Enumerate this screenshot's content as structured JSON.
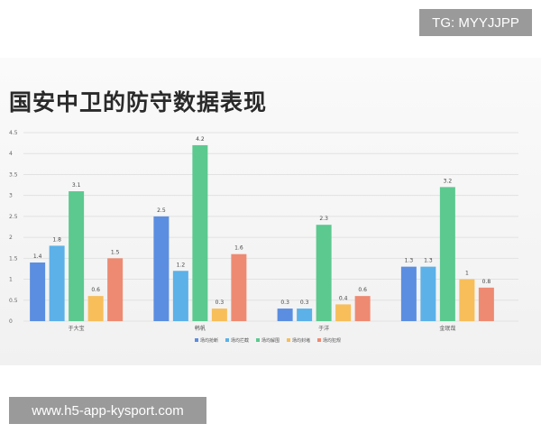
{
  "watermark_top": "TG: MYYJJPP",
  "watermark_bottom": "www.h5-app-kysport.com",
  "chart_data": {
    "type": "bar",
    "title": "国安中卫的防守数据表现",
    "xlabel": "",
    "ylabel": "",
    "ylim": [
      0,
      4.5
    ],
    "yticks": [
      "0",
      "0.5",
      "1",
      "1.5",
      "2",
      "2.5",
      "3",
      "3.5",
      "4",
      "4.5"
    ],
    "grid": true,
    "legend_position": "bottom",
    "categories": [
      "于大宝",
      "韩帆",
      "于洋",
      "金珉哉"
    ],
    "series": [
      {
        "name": "场均抢断",
        "color": "#5b8ee0",
        "values": [
          1.4,
          2.5,
          0.3,
          1.3
        ],
        "labels": [
          "1.4",
          "2.5",
          "0.3",
          "1.3"
        ]
      },
      {
        "name": "场均拦截",
        "color": "#5bb1e8",
        "values": [
          1.8,
          1.2,
          0.3,
          1.3
        ],
        "labels": [
          "1.8",
          "1.2",
          "0.3",
          "1.3"
        ]
      },
      {
        "name": "场均解围",
        "color": "#5cc98f",
        "values": [
          3.1,
          4.2,
          2.3,
          3.2
        ],
        "labels": [
          "3.1",
          "4.2",
          "2.3",
          "3.2"
        ]
      },
      {
        "name": "场均封堵",
        "color": "#f7be5a",
        "values": [
          0.6,
          0.3,
          0.4,
          1.0
        ],
        "labels": [
          "0.6",
          "0.3",
          "0.4",
          "1"
        ]
      },
      {
        "name": "场均犯规",
        "color": "#ee8a72",
        "values": [
          1.5,
          1.6,
          0.6,
          0.8
        ],
        "labels": [
          "1.5",
          "1.6",
          "0.6",
          "0.8"
        ]
      }
    ]
  }
}
